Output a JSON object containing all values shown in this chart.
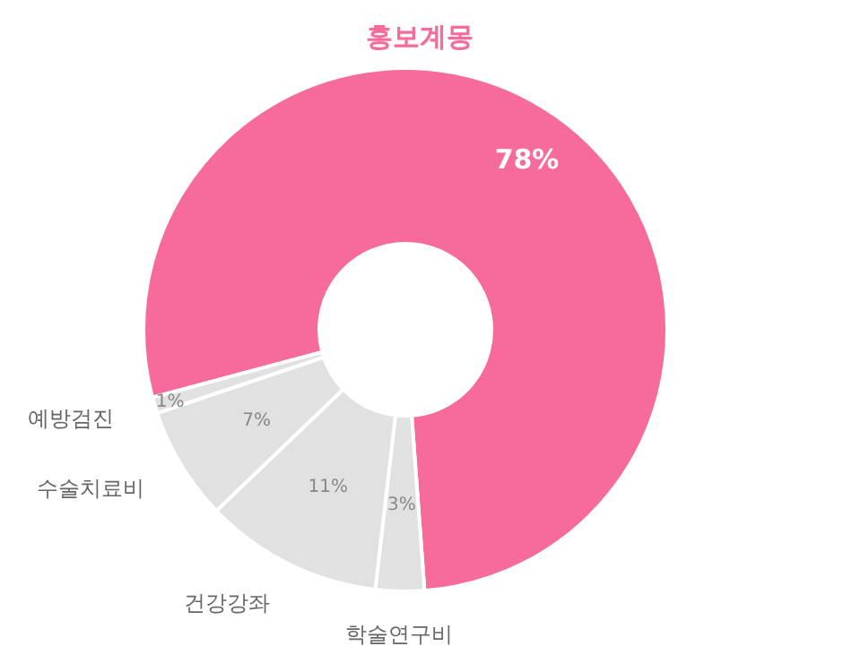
{
  "chart_data": {
    "type": "donut",
    "categories": [
      "홍보계몽",
      "학술연구비",
      "건강강좌",
      "수술치료비",
      "예방검진"
    ],
    "values": [
      78,
      3,
      11,
      7,
      1
    ],
    "value_labels": [
      "78%",
      "3%",
      "11%",
      "7%",
      "1%"
    ],
    "colors": [
      "#f66b9b",
      "#e1e1e1",
      "#e1e1e1",
      "#e1e1e1",
      "#e1e1e1"
    ]
  }
}
